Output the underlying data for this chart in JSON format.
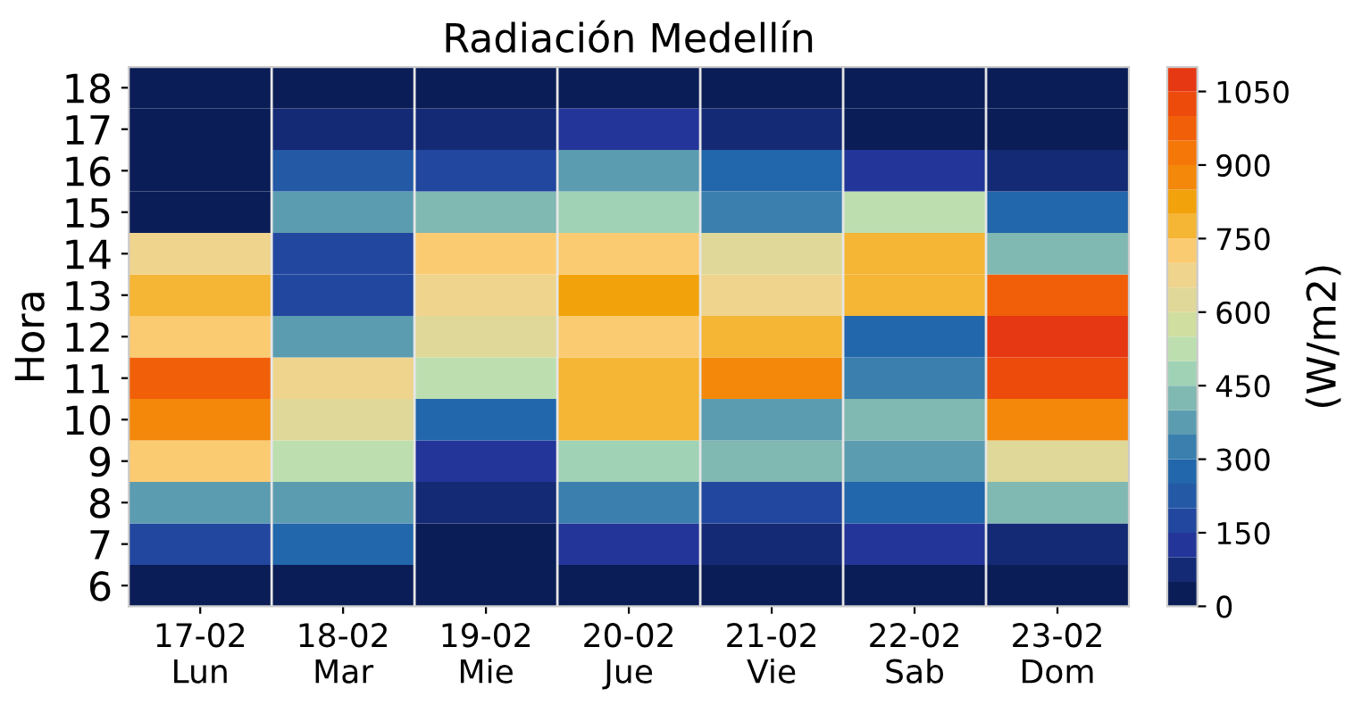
{
  "chart_data": {
    "type": "heatmap",
    "title": "Radiación Medellín",
    "ylabel": "Hora",
    "clabel": "(W/m2)",
    "categories": [
      "17-02\nLun",
      "18-02\nMar",
      "19-02\nMie",
      "20-02\nJue",
      "21-02\nVie",
      "22-02\nSab",
      "23-02\nDom"
    ],
    "y_categories": [
      "18",
      "17",
      "16",
      "15",
      "14",
      "13",
      "12",
      "11",
      "10",
      "9",
      "8",
      "7",
      "6"
    ],
    "cells": [
      [
        25,
        25,
        25,
        25,
        25,
        25,
        25
      ],
      [
        25,
        75,
        75,
        125,
        75,
        25,
        25
      ],
      [
        25,
        225,
        175,
        375,
        275,
        125,
        75
      ],
      [
        25,
        375,
        425,
        475,
        325,
        525,
        275
      ],
      [
        675,
        175,
        725,
        725,
        625,
        775,
        425
      ],
      [
        775,
        175,
        675,
        825,
        675,
        775,
        975
      ],
      [
        725,
        375,
        625,
        725,
        775,
        275,
        1075
      ],
      [
        975,
        675,
        525,
        775,
        875,
        325,
        1025
      ],
      [
        875,
        625,
        275,
        775,
        375,
        425,
        875
      ],
      [
        725,
        525,
        125,
        475,
        425,
        375,
        625
      ],
      [
        375,
        375,
        75,
        325,
        175,
        275,
        425
      ],
      [
        175,
        275,
        25,
        125,
        75,
        125,
        75
      ],
      [
        25,
        25,
        25,
        25,
        25,
        25,
        25
      ]
    ],
    "clim": [
      0,
      1100
    ],
    "cticks": [
      0,
      150,
      300,
      450,
      600,
      750,
      900,
      1050
    ],
    "colors": [
      "#0a1d57",
      "#142a75",
      "#24359a",
      "#22479f",
      "#2359a5",
      "#2266ab",
      "#3a7fae",
      "#5c9cb0",
      "#80b8b2",
      "#a0d2b6",
      "#bddfb0",
      "#d0dea0",
      "#dfd898",
      "#efd48e",
      "#fbcb72",
      "#f5b535",
      "#f2a20b",
      "#f3880b",
      "#f57708",
      "#f25f09",
      "#ec4b0c",
      "#e63812"
    ]
  }
}
